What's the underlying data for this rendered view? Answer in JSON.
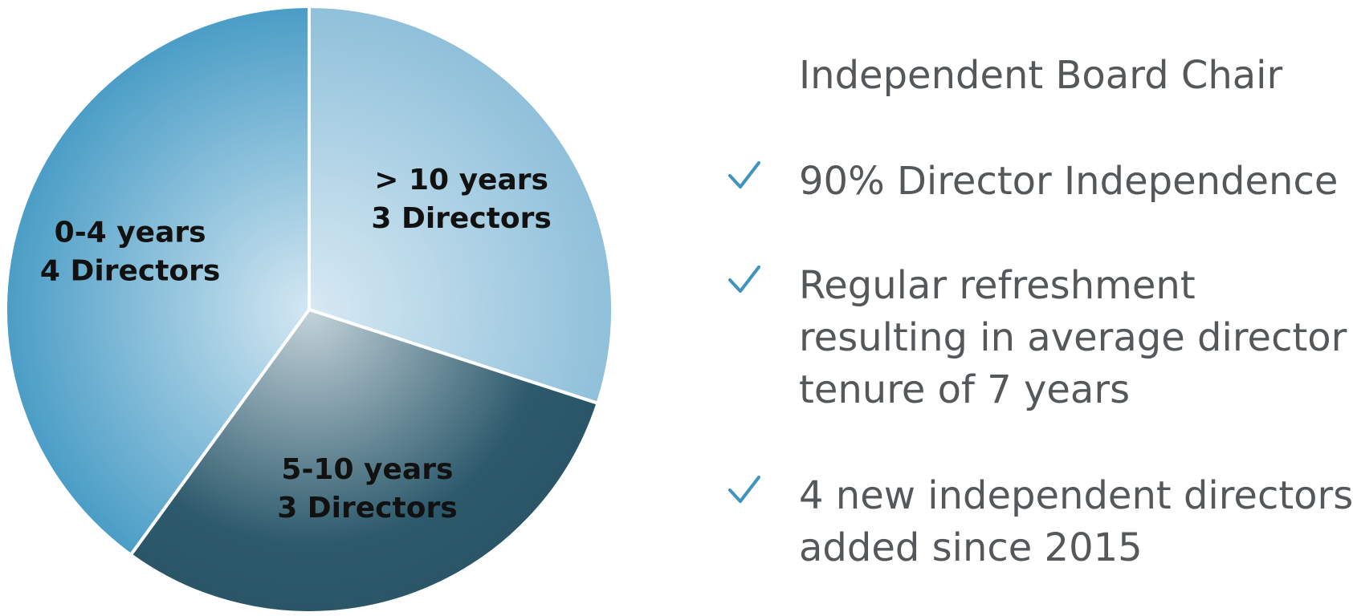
{
  "chart_data": {
    "type": "pie",
    "title": "",
    "slices": [
      {
        "label": "> 10 years",
        "value_label": "3 Directors",
        "value": 3,
        "color": "#8fc0da"
      },
      {
        "label": "5-10 years",
        "value_label": "3 Directors",
        "value": 3,
        "color": "#2c596b"
      },
      {
        "label": "0-4 years",
        "value_label": "4 Directors",
        "value": 4,
        "color": "#4a9dc6"
      }
    ],
    "start": "top",
    "direction": "clockwise"
  },
  "highlights": [
    {
      "checked": false,
      "lines": [
        "Independent Board Chair"
      ]
    },
    {
      "checked": true,
      "lines": [
        "90% Director Independence"
      ]
    },
    {
      "checked": true,
      "lines": [
        "Regular refreshment",
        "resulting in average director",
        "tenure of 7 years"
      ]
    },
    {
      "checked": true,
      "lines": [
        "4 new independent directors",
        "added since 2015"
      ]
    }
  ],
  "colors": {
    "check": "#3f93bd",
    "text": "#55585b",
    "label": "#111111"
  },
  "icons": {
    "check": "checkmark-icon"
  }
}
